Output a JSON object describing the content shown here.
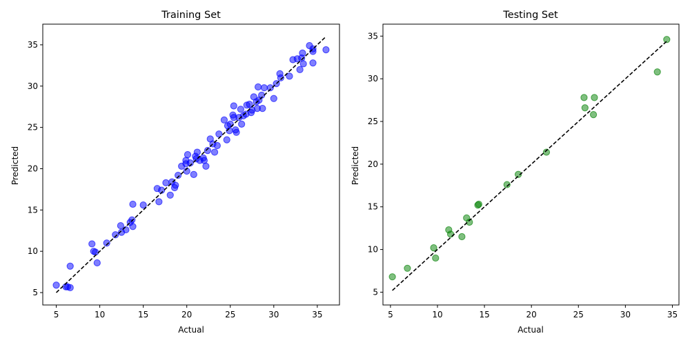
{
  "chart_data": [
    {
      "type": "scatter",
      "title": "Training Set",
      "xlabel": "Actual",
      "ylabel": "Predicted",
      "xlim": [
        3.45,
        37.55
      ],
      "ylim": [
        3.5,
        37.5
      ],
      "xticks": [
        5,
        10,
        15,
        20,
        25,
        30,
        35
      ],
      "yticks": [
        5,
        10,
        15,
        20,
        25,
        30,
        35
      ],
      "grid": false,
      "point_color": "#0000ff",
      "point_alpha": 0.5,
      "reference_line": {
        "from": [
          5,
          5
        ],
        "to": [
          36,
          36
        ],
        "style": "dashed",
        "color": "#000000"
      },
      "points": [
        [
          5.0,
          5.9
        ],
        [
          6.1,
          5.7
        ],
        [
          6.3,
          5.7
        ],
        [
          6.6,
          5.6
        ],
        [
          6.6,
          8.2
        ],
        [
          9.1,
          10.9
        ],
        [
          9.3,
          10.0
        ],
        [
          9.5,
          9.9
        ],
        [
          9.7,
          8.6
        ],
        [
          10.8,
          11.0
        ],
        [
          11.8,
          12.0
        ],
        [
          12.4,
          13.1
        ],
        [
          12.5,
          12.3
        ],
        [
          13.0,
          12.6
        ],
        [
          13.5,
          13.5
        ],
        [
          13.7,
          13.8
        ],
        [
          13.8,
          15.7
        ],
        [
          13.8,
          13.0
        ],
        [
          15.0,
          15.6
        ],
        [
          16.6,
          17.6
        ],
        [
          16.8,
          16.0
        ],
        [
          17.1,
          17.4
        ],
        [
          17.6,
          18.3
        ],
        [
          18.1,
          16.8
        ],
        [
          18.3,
          18.4
        ],
        [
          18.6,
          17.7
        ],
        [
          18.7,
          18.0
        ],
        [
          19.0,
          19.2
        ],
        [
          19.4,
          20.3
        ],
        [
          19.9,
          21.0
        ],
        [
          19.9,
          20.6
        ],
        [
          20.0,
          19.7
        ],
        [
          20.1,
          21.7
        ],
        [
          20.4,
          20.7
        ],
        [
          20.8,
          19.3
        ],
        [
          21.0,
          21.5
        ],
        [
          21.1,
          21.2
        ],
        [
          21.2,
          22.0
        ],
        [
          21.5,
          21.0
        ],
        [
          21.9,
          21.3
        ],
        [
          22.0,
          21.0
        ],
        [
          22.2,
          20.3
        ],
        [
          22.4,
          22.2
        ],
        [
          22.7,
          23.6
        ],
        [
          23.0,
          23.0
        ],
        [
          23.2,
          22.0
        ],
        [
          23.5,
          22.8
        ],
        [
          23.7,
          24.2
        ],
        [
          24.3,
          25.9
        ],
        [
          24.6,
          23.5
        ],
        [
          24.7,
          25.2
        ],
        [
          24.9,
          24.6
        ],
        [
          25.0,
          25.4
        ],
        [
          25.3,
          26.5
        ],
        [
          25.4,
          26.2
        ],
        [
          25.4,
          27.6
        ],
        [
          25.6,
          24.7
        ],
        [
          25.7,
          24.4
        ],
        [
          26.0,
          26.2
        ],
        [
          26.2,
          27.2
        ],
        [
          26.3,
          25.4
        ],
        [
          26.5,
          26.4
        ],
        [
          26.8,
          26.6
        ],
        [
          26.9,
          27.7
        ],
        [
          27.2,
          27.8
        ],
        [
          27.4,
          26.8
        ],
        [
          27.5,
          27.1
        ],
        [
          27.7,
          28.7
        ],
        [
          28.0,
          28.1
        ],
        [
          28.1,
          27.3
        ],
        [
          28.2,
          29.9
        ],
        [
          28.3,
          28.3
        ],
        [
          28.6,
          28.9
        ],
        [
          28.7,
          27.3
        ],
        [
          28.9,
          29.8
        ],
        [
          29.6,
          29.8
        ],
        [
          30.0,
          28.5
        ],
        [
          30.3,
          30.3
        ],
        [
          30.7,
          31.5
        ],
        [
          30.8,
          31.0
        ],
        [
          31.8,
          31.2
        ],
        [
          32.2,
          33.2
        ],
        [
          32.7,
          33.3
        ],
        [
          33.0,
          32.0
        ],
        [
          33.2,
          33.4
        ],
        [
          33.3,
          34.0
        ],
        [
          33.4,
          32.7
        ],
        [
          34.1,
          34.9
        ],
        [
          34.5,
          34.5
        ],
        [
          34.5,
          34.2
        ],
        [
          34.5,
          32.8
        ],
        [
          36.0,
          34.4
        ]
      ]
    },
    {
      "type": "scatter",
      "title": "Testing Set",
      "xlabel": "Actual",
      "ylabel": "Predicted",
      "xlim": [
        4.2,
        35.7
      ],
      "ylim": [
        3.5,
        36.4
      ],
      "xticks": [
        5,
        10,
        15,
        20,
        25,
        30,
        35
      ],
      "yticks": [
        5,
        10,
        15,
        20,
        25,
        30,
        35
      ],
      "grid": false,
      "point_color": "#008000",
      "point_alpha": 0.5,
      "reference_line": {
        "from": [
          5.2,
          5.2
        ],
        "to": [
          34.4,
          34.4
        ],
        "style": "dashed",
        "color": "#000000"
      },
      "points": [
        [
          5.2,
          6.8
        ],
        [
          6.8,
          7.8
        ],
        [
          9.6,
          10.2
        ],
        [
          9.8,
          9.0
        ],
        [
          11.2,
          12.3
        ],
        [
          11.4,
          11.8
        ],
        [
          12.6,
          11.5
        ],
        [
          13.1,
          13.7
        ],
        [
          13.4,
          13.2
        ],
        [
          14.3,
          15.2
        ],
        [
          14.4,
          15.3
        ],
        [
          17.4,
          17.6
        ],
        [
          18.6,
          18.8
        ],
        [
          21.6,
          21.4
        ],
        [
          25.6,
          27.8
        ],
        [
          25.7,
          26.6
        ],
        [
          26.6,
          25.8
        ],
        [
          26.7,
          27.8
        ],
        [
          33.4,
          30.8
        ],
        [
          34.4,
          34.6
        ]
      ]
    }
  ]
}
